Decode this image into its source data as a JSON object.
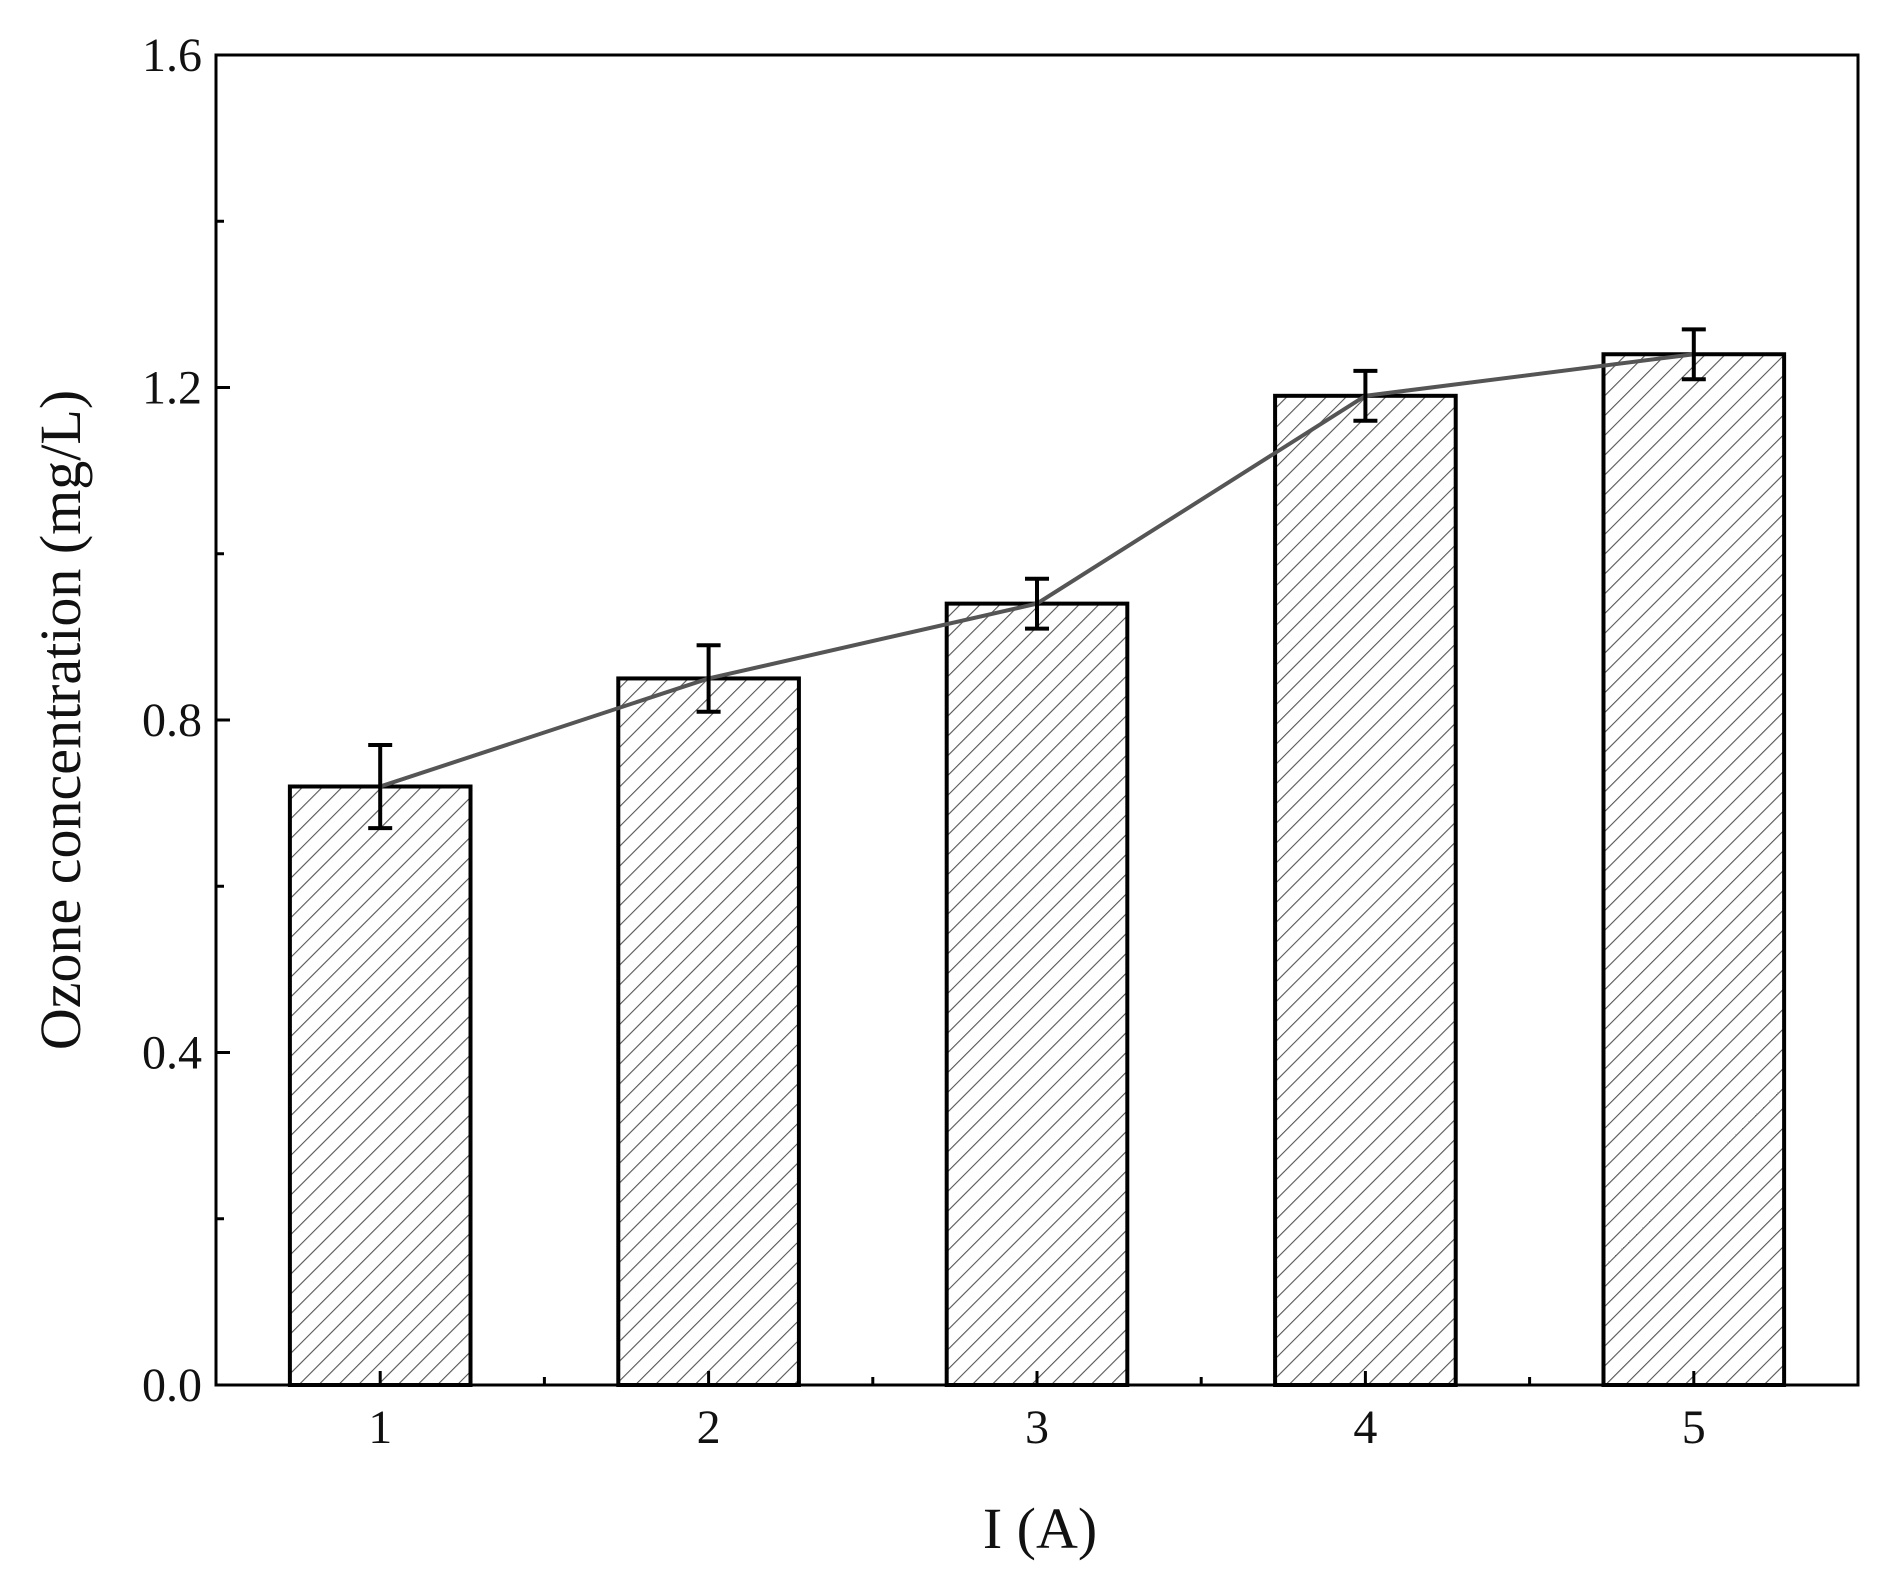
{
  "chart_data": {
    "type": "bar",
    "title": "",
    "xlabel": "I (A)",
    "ylabel": "Ozone concentration (mg/L)",
    "categories": [
      "1",
      "2",
      "3",
      "4",
      "5"
    ],
    "values": [
      0.72,
      0.85,
      0.94,
      1.19,
      1.24
    ],
    "errors": [
      0.05,
      0.04,
      0.03,
      0.03,
      0.03
    ],
    "ylim": [
      0,
      1.6
    ],
    "yticks": [
      "0.0",
      "0.4",
      "0.8",
      "1.2",
      "1.6"
    ],
    "overlay_line": true,
    "bar_fill": "hatched",
    "grid": false,
    "colors": {
      "bar_edge": "#000000",
      "hatch": "#555555",
      "line": "#555555",
      "errorbar": "#000000"
    }
  }
}
